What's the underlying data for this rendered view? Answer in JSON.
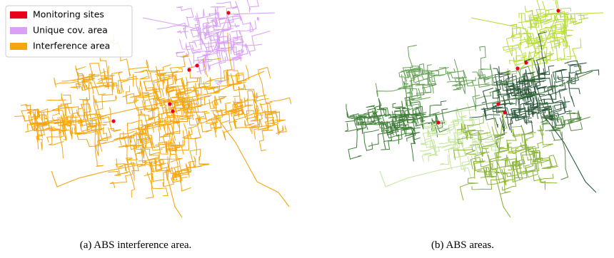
{
  "legend": [
    {
      "label": "Monitoring sites",
      "color": "#e8001c"
    },
    {
      "label": "Unique cov. area",
      "color": "#d9a0f5"
    },
    {
      "label": "Interference area",
      "color": "#f5a511"
    }
  ],
  "captions": [
    "(a) ABS interference area.",
    "(b) ABS areas."
  ]
}
